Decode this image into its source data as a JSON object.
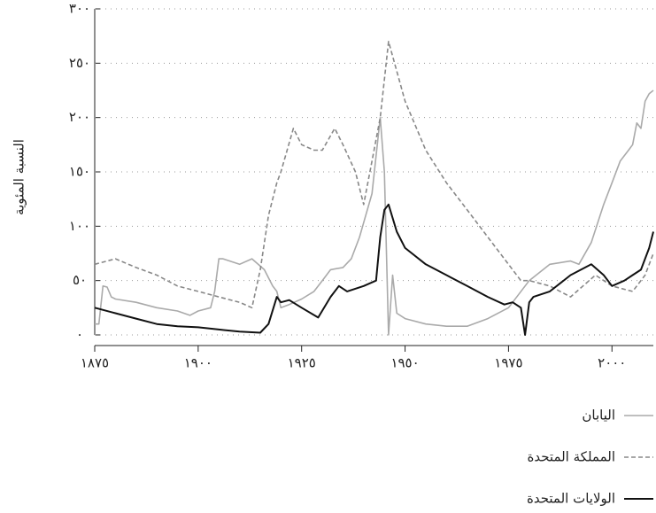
{
  "chart_data": {
    "type": "line",
    "y_label": "النسبة المئوية",
    "xlim": [
      1875,
      2010
    ],
    "xticks": [
      {
        "value": 1875,
        "label": "١٨٧٥"
      },
      {
        "value": 1900,
        "label": "١٩٠٠"
      },
      {
        "value": 1925,
        "label": "١٩٢٥"
      },
      {
        "value": 1950,
        "label": "١٩٥٠"
      },
      {
        "value": 1975,
        "label": "١٩٧٥"
      },
      {
        "value": 2000,
        "label": "٢٠٠٠"
      }
    ],
    "ylim": [
      0,
      300
    ],
    "yticks": [
      {
        "value": 0,
        "label": "٠"
      },
      {
        "value": 50,
        "label": "٥٠"
      },
      {
        "value": 100,
        "label": "١٠٠"
      },
      {
        "value": 150,
        "label": "١٥٠"
      },
      {
        "value": 200,
        "label": "٢٠٠"
      },
      {
        "value": 250,
        "label": "٢٥٠"
      },
      {
        "value": 300,
        "label": "٣٠٠"
      }
    ],
    "grid": true,
    "legend": "bottom-right",
    "series": [
      {
        "name": "اليابان",
        "color": "#aaaaaa",
        "style": "solid",
        "x": [
          1875,
          1876,
          1877,
          1878,
          1879,
          1880,
          1885,
          1890,
          1895,
          1898,
          1900,
          1903,
          1904,
          1905,
          1906,
          1910,
          1913,
          1916,
          1918,
          1919,
          1920,
          1922,
          1925,
          1928,
          1930,
          1932,
          1935,
          1937,
          1939,
          1942,
          1944,
          1945,
          1946,
          1947,
          1948,
          1950,
          1955,
          1960,
          1965,
          1970,
          1975,
          1980,
          1985,
          1990,
          1992,
          1995,
          1998,
          2000,
          2002,
          2004,
          2005,
          2006,
          2007,
          2008,
          2009,
          2010
        ],
        "values": [
          10,
          10,
          45,
          44,
          35,
          33,
          30,
          25,
          22,
          18,
          22,
          25,
          40,
          70,
          70,
          65,
          70,
          60,
          45,
          40,
          25,
          28,
          33,
          40,
          50,
          60,
          62,
          70,
          90,
          130,
          200,
          150,
          0,
          55,
          20,
          15,
          10,
          8,
          8,
          15,
          25,
          50,
          65,
          68,
          65,
          85,
          120,
          140,
          160,
          170,
          175,
          195,
          190,
          215,
          222,
          225
        ]
      },
      {
        "name": "المملكة المتحدة",
        "color": "#888888",
        "style": "dashed",
        "x": [
          1875,
          1880,
          1885,
          1890,
          1895,
          1900,
          1905,
          1910,
          1913,
          1915,
          1917,
          1919,
          1920,
          1923,
          1925,
          1928,
          1930,
          1933,
          1935,
          1938,
          1940,
          1942,
          1944,
          1946,
          1950,
          1955,
          1960,
          1965,
          1970,
          1975,
          1978,
          1980,
          1985,
          1990,
          1993,
          1996,
          2000,
          2005,
          2008,
          2010
        ],
        "values": [
          65,
          70,
          62,
          55,
          45,
          40,
          35,
          30,
          25,
          60,
          110,
          140,
          150,
          190,
          175,
          170,
          170,
          190,
          175,
          150,
          120,
          160,
          200,
          270,
          215,
          170,
          140,
          115,
          90,
          65,
          50,
          50,
          45,
          35,
          45,
          55,
          45,
          40,
          55,
          75
        ]
      },
      {
        "name": "الولايات المتحدة",
        "color": "#111111",
        "style": "solid",
        "x": [
          1875,
          1880,
          1885,
          1890,
          1895,
          1900,
          1905,
          1910,
          1915,
          1917,
          1919,
          1920,
          1922,
          1925,
          1929,
          1932,
          1934,
          1936,
          1940,
          1943,
          1944,
          1945,
          1946,
          1948,
          1950,
          1955,
          1960,
          1965,
          1970,
          1974,
          1976,
          1978,
          1979,
          1980,
          1981,
          1985,
          1990,
          1995,
          1998,
          2000,
          2003,
          2005,
          2007,
          2009,
          2010
        ],
        "values": [
          25,
          20,
          15,
          10,
          8,
          7,
          5,
          3,
          2,
          10,
          35,
          30,
          32,
          25,
          16,
          35,
          45,
          40,
          45,
          50,
          90,
          115,
          120,
          95,
          80,
          65,
          55,
          45,
          35,
          28,
          30,
          25,
          0,
          30,
          35,
          40,
          55,
          65,
          55,
          45,
          50,
          55,
          60,
          80,
          95
        ]
      }
    ]
  }
}
